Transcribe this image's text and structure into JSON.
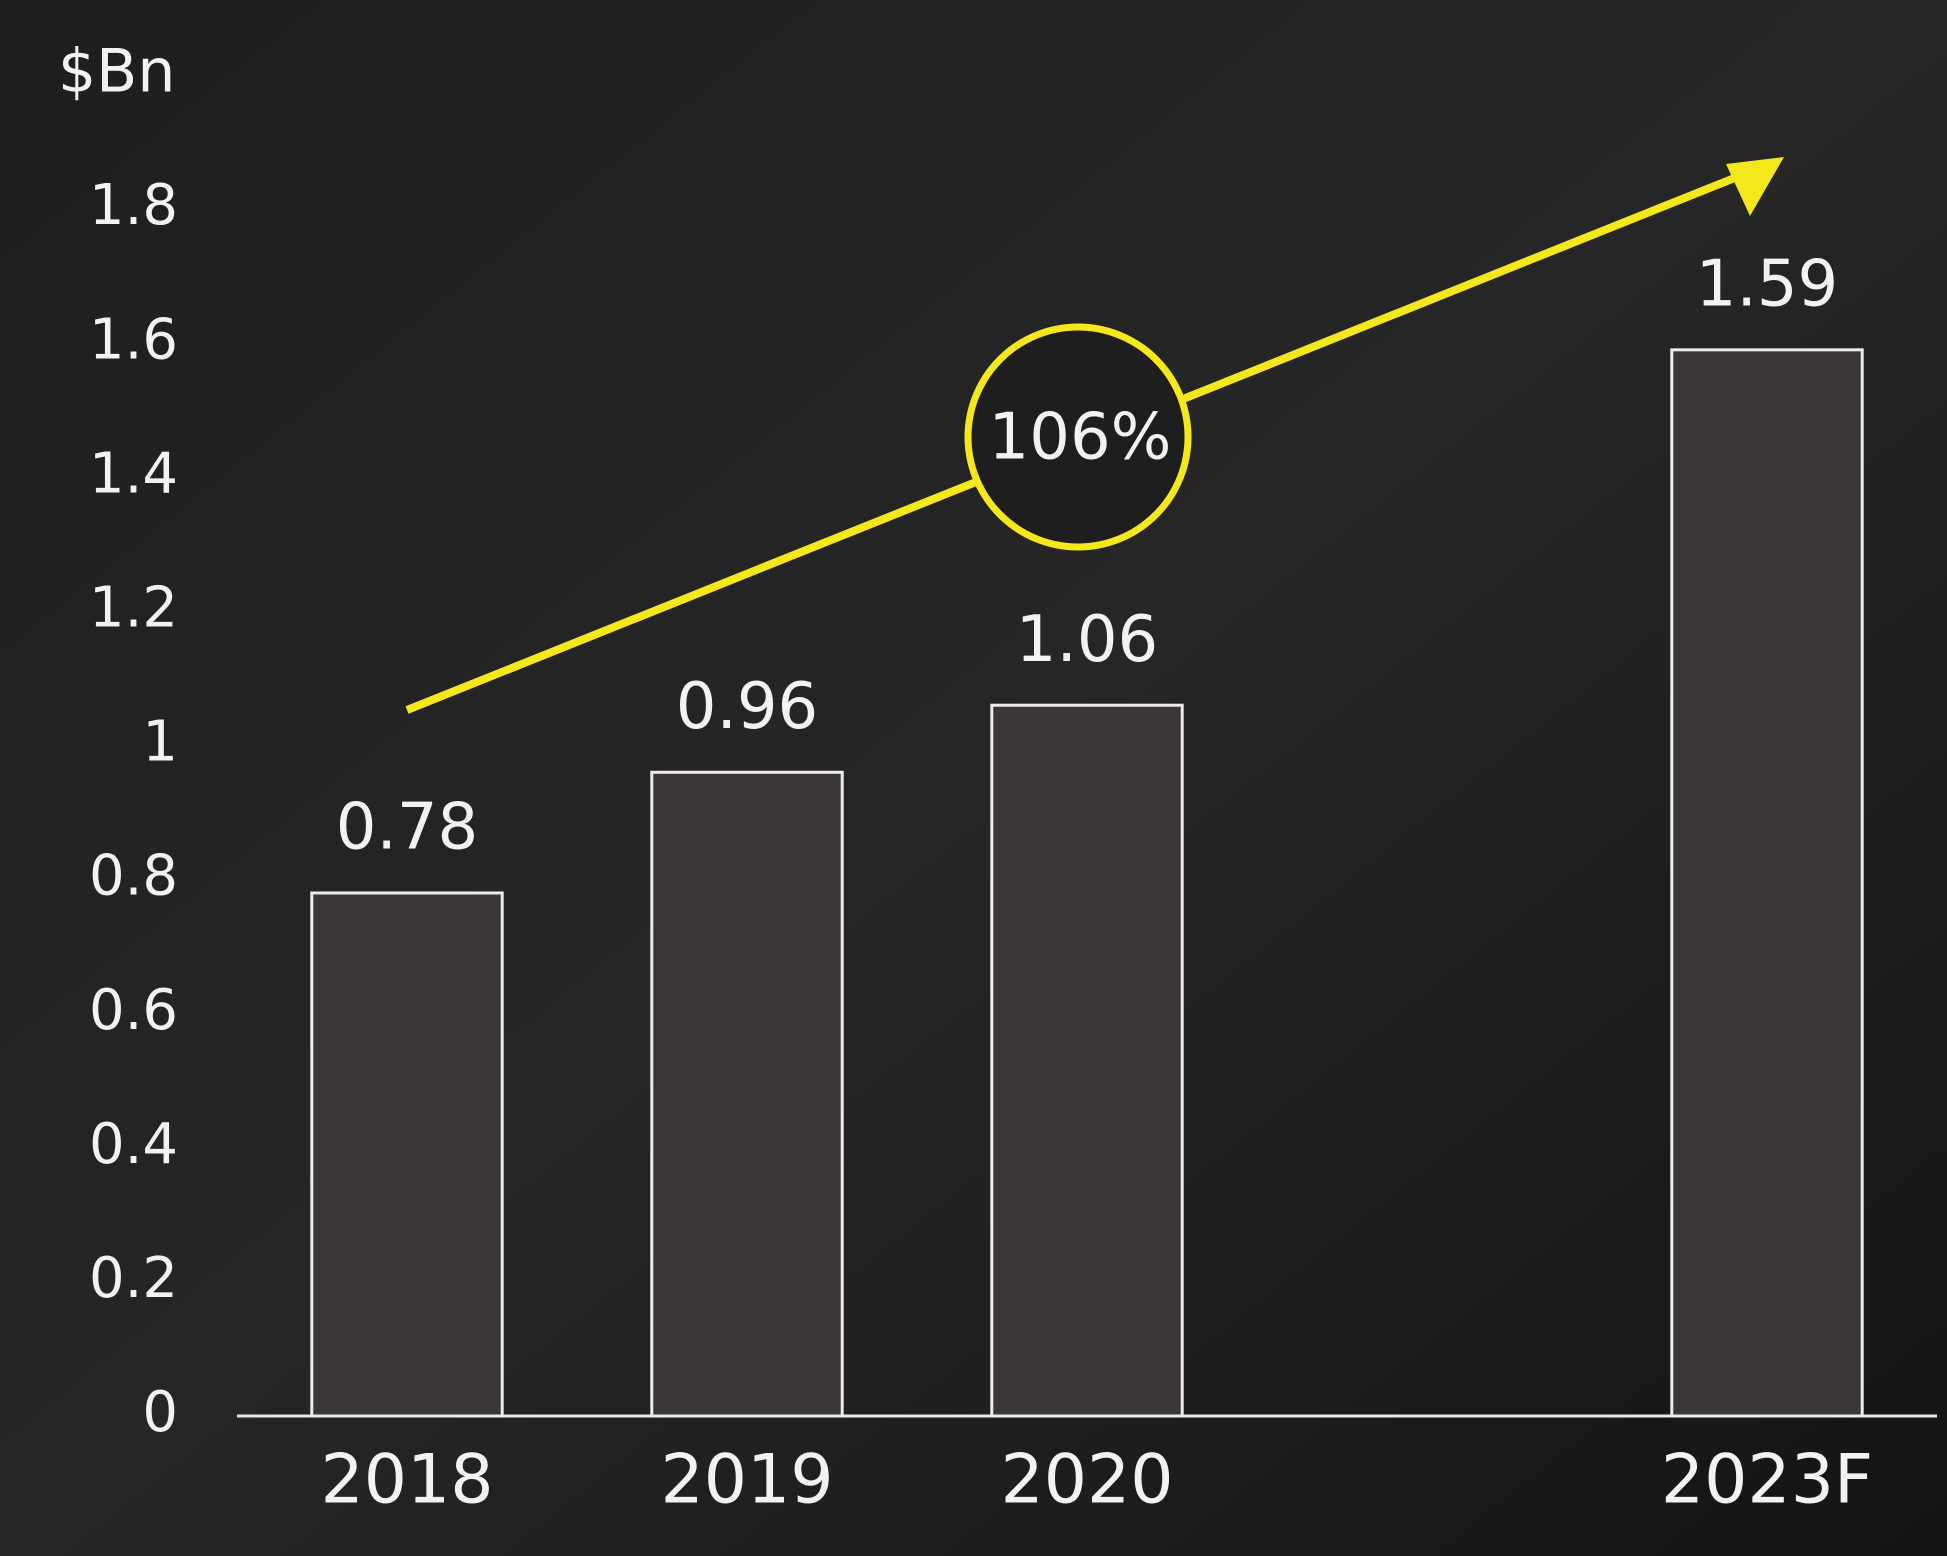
{
  "chart_data": {
    "type": "bar",
    "y_label": "$Bn",
    "categories": [
      "2018",
      "2019",
      "2020",
      null,
      "2023F"
    ],
    "values": [
      0.78,
      0.96,
      1.06,
      null,
      1.59
    ],
    "color": "#3a3736",
    "ylim": [
      0,
      1.8
    ],
    "yticks": [
      0,
      0.2,
      0.4,
      0.6,
      0.8,
      1,
      1.2,
      1.4,
      1.6,
      1.8
    ],
    "grid": false,
    "annotation": "106%"
  }
}
